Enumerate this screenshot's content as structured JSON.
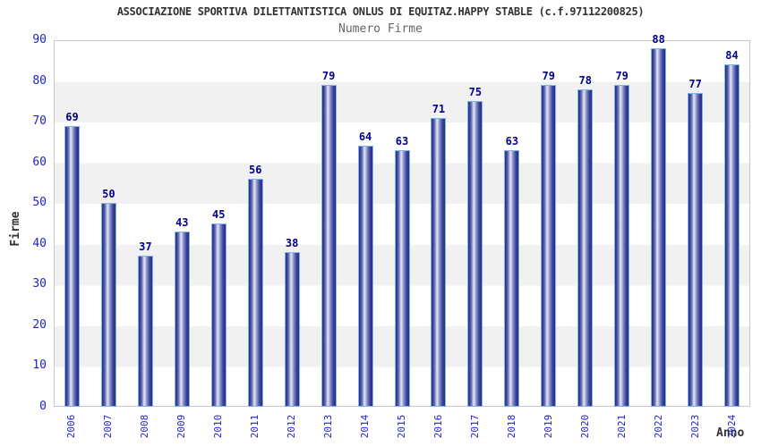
{
  "chart_data": {
    "type": "bar",
    "title": "ASSOCIAZIONE SPORTIVA DILETTANTISTICA ONLUS DI EQUITAZ.HAPPY STABLE (c.f.97112200825)",
    "subtitle": "Numero Firme",
    "xlabel": "Anno",
    "ylabel": "Firme",
    "categories": [
      "2006",
      "2007",
      "2008",
      "2009",
      "2010",
      "2011",
      "2012",
      "2013",
      "2014",
      "2015",
      "2016",
      "2017",
      "2018",
      "2019",
      "2020",
      "2021",
      "2022",
      "2023",
      "2024"
    ],
    "values": [
      69,
      50,
      37,
      43,
      45,
      56,
      38,
      79,
      64,
      63,
      71,
      75,
      63,
      79,
      78,
      79,
      88,
      77,
      84
    ],
    "ylim": [
      0,
      90
    ],
    "yticks": [
      0,
      10,
      20,
      30,
      40,
      50,
      60,
      70,
      80,
      90
    ],
    "grid": "alternating horizontal bands every 10 units",
    "legend": "none",
    "colors": {
      "bar_edge_dark": "#272e86",
      "bar_highlight": "#e4e7f5",
      "bar_border": "#7db3e8",
      "tick_label": "#2222cc",
      "value_label": "#00008b",
      "title_text": "#333333",
      "subtitle_text": "#666666",
      "band_gray": "#f1f1f1",
      "plot_border": "#c8c8c8",
      "background": "#ffffff"
    }
  }
}
